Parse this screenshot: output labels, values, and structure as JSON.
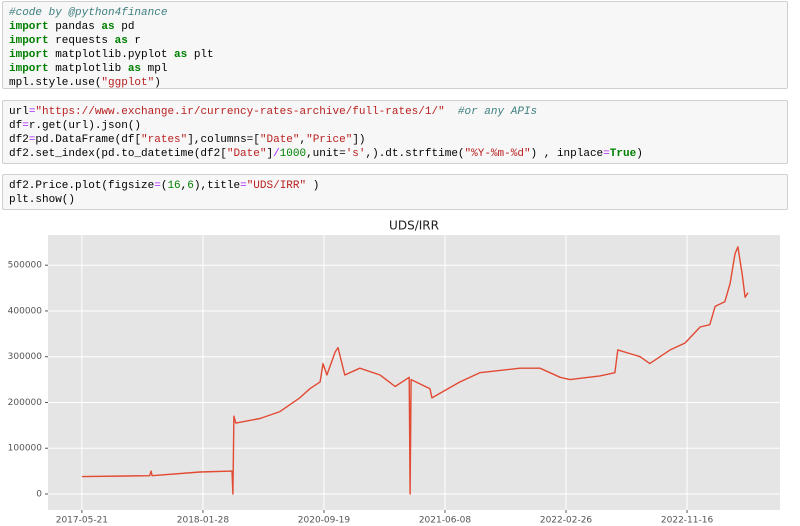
{
  "cells": [
    {
      "lines": [
        [
          {
            "text": "#code by @python4finance",
            "color": "#408080",
            "italic": true
          }
        ],
        [
          {
            "text": "import",
            "color": "#008000",
            "bold": true
          },
          {
            "text": " pandas ",
            "color": "#000000"
          },
          {
            "text": "as",
            "color": "#008000",
            "bold": true
          },
          {
            "text": " pd",
            "color": "#000000"
          }
        ],
        [
          {
            "text": "import",
            "color": "#008000",
            "bold": true
          },
          {
            "text": " requests ",
            "color": "#000000"
          },
          {
            "text": "as",
            "color": "#008000",
            "bold": true
          },
          {
            "text": " r",
            "color": "#000000"
          }
        ],
        [
          {
            "text": "import",
            "color": "#008000",
            "bold": true
          },
          {
            "text": " matplotlib.pyplot ",
            "color": "#000000"
          },
          {
            "text": "as",
            "color": "#008000",
            "bold": true
          },
          {
            "text": " plt",
            "color": "#000000"
          }
        ],
        [
          {
            "text": "import",
            "color": "#008000",
            "bold": true
          },
          {
            "text": " matplotlib ",
            "color": "#000000"
          },
          {
            "text": "as",
            "color": "#008000",
            "bold": true
          },
          {
            "text": " mpl",
            "color": "#000000"
          }
        ],
        [
          {
            "text": "mpl.style.use(",
            "color": "#000000"
          },
          {
            "text": "\"ggplot\"",
            "color": "#BA2121"
          },
          {
            "text": ")",
            "color": "#000000"
          }
        ]
      ]
    },
    {
      "lines": [
        [
          {
            "text": "url",
            "color": "#000000"
          },
          {
            "text": "=",
            "color": "#AA22FF"
          },
          {
            "text": "\"https://www.exchange.ir/currency-rates-archive/full-rates/1/\"",
            "color": "#BA2121"
          },
          {
            "text": "  ",
            "color": "#000000"
          },
          {
            "text": "#or any APIs",
            "color": "#408080",
            "italic": true
          }
        ],
        [
          {
            "text": "df",
            "color": "#000000"
          },
          {
            "text": "=",
            "color": "#AA22FF"
          },
          {
            "text": "r.get(url).json()",
            "color": "#000000"
          }
        ],
        [
          {
            "text": "df2",
            "color": "#000000"
          },
          {
            "text": "=",
            "color": "#AA22FF"
          },
          {
            "text": "pd.DataFrame(df[",
            "color": "#000000"
          },
          {
            "text": "\"rates\"",
            "color": "#BA2121"
          },
          {
            "text": "],columns=[",
            "color": "#000000"
          },
          {
            "text": "\"Date\"",
            "color": "#BA2121"
          },
          {
            "text": ",",
            "color": "#000000"
          },
          {
            "text": "\"Price\"",
            "color": "#BA2121"
          },
          {
            "text": "])",
            "color": "#000000"
          }
        ],
        [
          {
            "text": "df2.set_index(pd.to_datetime(df2[",
            "color": "#000000"
          },
          {
            "text": "\"Date\"",
            "color": "#BA2121"
          },
          {
            "text": "]",
            "color": "#000000"
          },
          {
            "text": "/",
            "color": "#AA22FF"
          },
          {
            "text": "1000",
            "color": "#008000"
          },
          {
            "text": ",unit=",
            "color": "#000000"
          },
          {
            "text": "'s'",
            "color": "#BA2121"
          },
          {
            "text": ",).dt.strftime(",
            "color": "#000000"
          },
          {
            "text": "\"%Y-%m-%d\"",
            "color": "#BA2121"
          },
          {
            "text": ") , inplace",
            "color": "#000000"
          },
          {
            "text": "=",
            "color": "#AA22FF"
          },
          {
            "text": "True",
            "color": "#008000",
            "bold": true
          },
          {
            "text": ")",
            "color": "#000000"
          }
        ]
      ]
    },
    {
      "lines": [
        [
          {
            "text": "df2.Price.plot(figsize",
            "color": "#000000"
          },
          {
            "text": "=",
            "color": "#AA22FF"
          },
          {
            "text": "(",
            "color": "#000000"
          },
          {
            "text": "16",
            "color": "#008000"
          },
          {
            "text": ",",
            "color": "#000000"
          },
          {
            "text": "6",
            "color": "#008000"
          },
          {
            "text": "),title",
            "color": "#000000"
          },
          {
            "text": "=",
            "color": "#AA22FF"
          },
          {
            "text": "\"UDS/IRR\"",
            "color": "#BA2121"
          },
          {
            "text": " )",
            "color": "#000000"
          }
        ],
        [
          {
            "text": "plt.show()",
            "color": "#000000"
          }
        ]
      ]
    }
  ],
  "chart_data": {
    "type": "line",
    "title": "UDS/IRR",
    "color": "#E24A33",
    "grid": true,
    "x": [
      0,
      140,
      143,
      145,
      244,
      310,
      312,
      314,
      318,
      368,
      409,
      450,
      471,
      492,
      498,
      506,
      523,
      529,
      543,
      574,
      616,
      647,
      676,
      678,
      680,
      719,
      723,
      781,
      822,
      905,
      946,
      988,
      1008,
      1070,
      1101,
      1107,
      1153,
      1173,
      1215,
      1246,
      1277,
      1297,
      1308,
      1328,
      1339,
      1349,
      1355,
      1364,
      1370,
      1376
    ],
    "values": [
      38000,
      40000,
      50000,
      40000,
      48000,
      50000,
      0,
      170000,
      155000,
      165000,
      180000,
      210000,
      230000,
      245000,
      285000,
      260000,
      310000,
      320000,
      260000,
      275000,
      260000,
      235000,
      255000,
      0,
      250000,
      230000,
      210000,
      245000,
      265000,
      275000,
      275000,
      255000,
      250000,
      258000,
      265000,
      315000,
      300000,
      285000,
      315000,
      330000,
      365000,
      370000,
      410000,
      420000,
      460000,
      525000,
      540000,
      480000,
      430000,
      440000
    ],
    "xlim": [
      -70,
      1442
    ],
    "xticks": [
      {
        "value": 0,
        "label": "2017-05-21"
      },
      {
        "value": 250,
        "label": "2018-01-28"
      },
      {
        "value": 500,
        "label": "2020-09-19"
      },
      {
        "value": 750,
        "label": "2021-06-08"
      },
      {
        "value": 1000,
        "label": "2022-02-26"
      },
      {
        "value": 1250,
        "label": "2022-11-16"
      }
    ],
    "ylim": [
      -35000,
      566000
    ],
    "yticks": [
      0,
      100000,
      200000,
      300000,
      400000,
      500000
    ]
  }
}
